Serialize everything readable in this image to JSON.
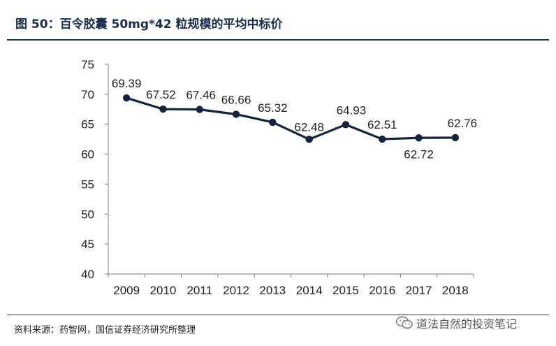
{
  "header": {
    "title": "图 50：百令胶囊 50mg*42 粒规模的平均中标价"
  },
  "footer": {
    "source": "资料来源：药智网，国信证券经济研究所整理",
    "watermark": "道法自然的投资笔记",
    "watermark_icon": "wechat-icon"
  },
  "colors": {
    "series": "#14233f",
    "axis": "#7f7f7f",
    "title": "#1a2f4e"
  },
  "chart_data": {
    "type": "line",
    "title": "",
    "xlabel": "",
    "ylabel": "",
    "x": [
      "2009",
      "2010",
      "2011",
      "2012",
      "2013",
      "2014",
      "2015",
      "2016",
      "2017",
      "2018"
    ],
    "series": [
      {
        "values": [
          69.39,
          67.52,
          67.46,
          66.66,
          65.32,
          62.48,
          64.93,
          62.51,
          62.72,
          62.76
        ],
        "labels": [
          "69.39",
          "67.52",
          "67.46",
          "66.66",
          "65.32",
          "62.48",
          "64.93",
          "62.51",
          "62.72",
          "62.76"
        ]
      }
    ],
    "ylim": [
      40,
      75
    ],
    "yticks": [
      "75",
      "70",
      "65",
      "60",
      "55",
      "50",
      "45",
      "40"
    ],
    "grid": false,
    "legend": "none"
  }
}
